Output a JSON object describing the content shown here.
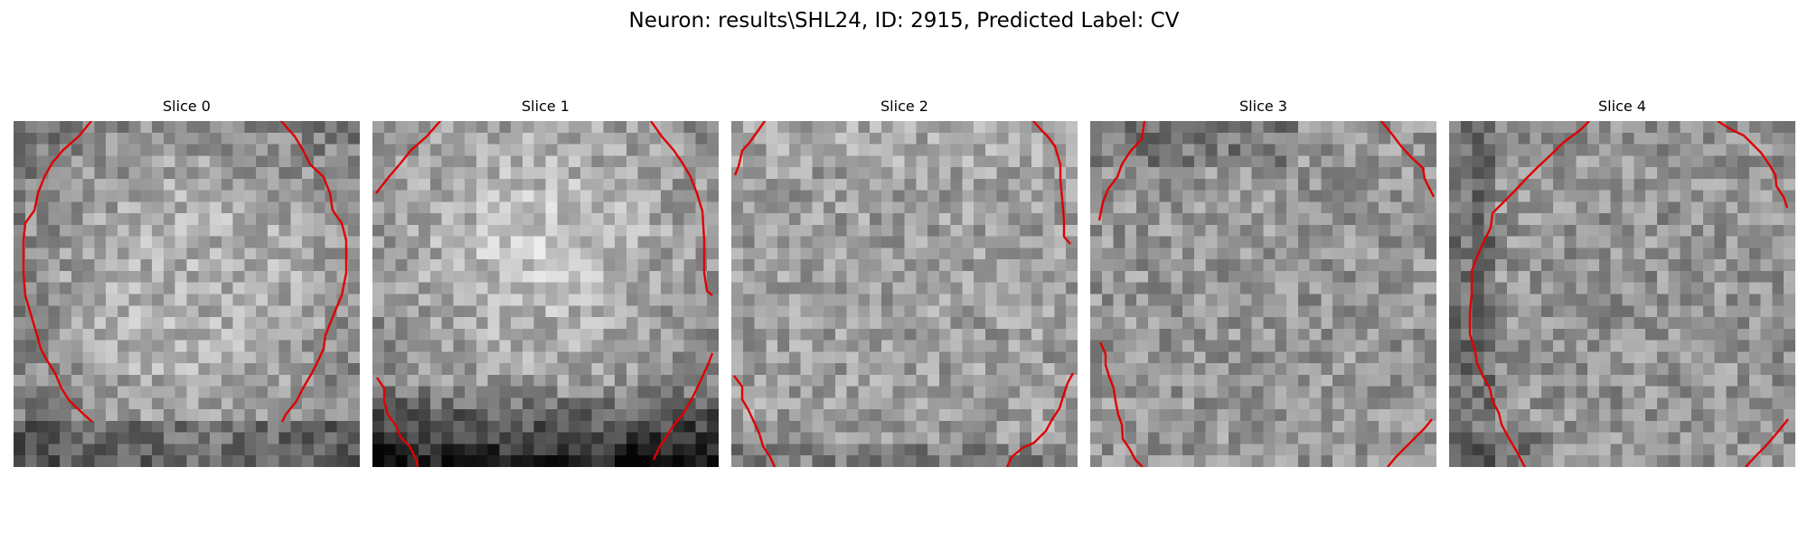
{
  "figure": {
    "title": "Neuron: results\\SHL24, ID: 2915, Predicted Label: CV",
    "contour_color": "#e00000"
  },
  "panels": [
    {
      "title": "Slice 0",
      "brightness": "center-bright, dark corners"
    },
    {
      "title": "Slice 1",
      "brightness": "bright upper-center, dark bottom band"
    },
    {
      "title": "Slice 2",
      "brightness": "mid-gray uniform"
    },
    {
      "title": "Slice 3",
      "brightness": "mid-gray uniform, darker top-left"
    },
    {
      "title": "Slice 4",
      "brightness": "mid-gray, dark left edge"
    }
  ]
}
